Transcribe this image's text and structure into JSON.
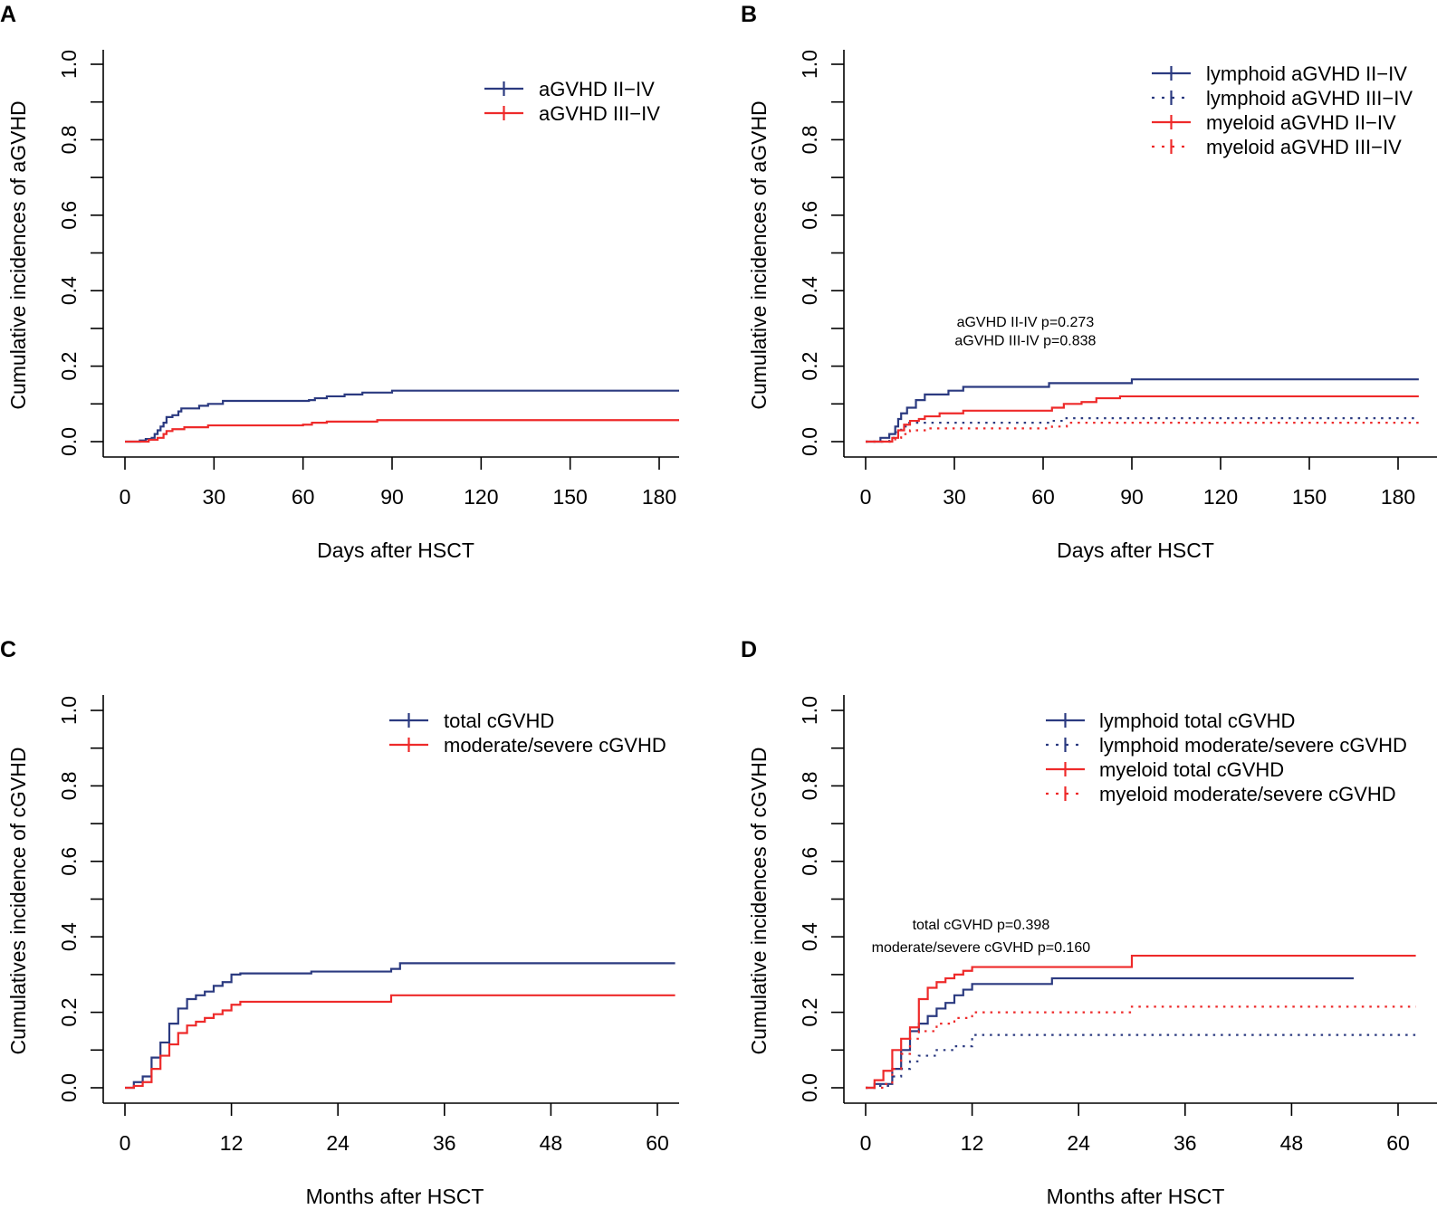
{
  "colors": {
    "blue": "#2b3a80",
    "red": "#ee2a2a"
  },
  "chart_data": [
    {
      "panel": "A",
      "type": "line",
      "step": true,
      "xlabel": "Days after HSCT",
      "ylabel": "Cumulative incidences of aGVHD",
      "xlim": [
        0,
        185
      ],
      "ylim": [
        0,
        1
      ],
      "xticks": [
        "0",
        "30",
        "60",
        "90",
        "120",
        "150",
        "180"
      ],
      "xtick_values": [
        0,
        30,
        60,
        90,
        120,
        150,
        180
      ],
      "yticks": [
        "0.0",
        "0.2",
        "0.4",
        "0.6",
        "0.8",
        "1.0"
      ],
      "ytick_values": [
        0,
        0.2,
        0.4,
        0.6,
        0.8,
        1.0
      ],
      "legend_position": "top-right",
      "annotations": [],
      "series": [
        {
          "name": "aGVHD II−IV",
          "color": "blue",
          "dash": "solid",
          "points": [
            [
              0,
              0
            ],
            [
              5,
              0.003
            ],
            [
              7,
              0.007
            ],
            [
              9,
              0.01
            ],
            [
              10,
              0.02
            ],
            [
              11,
              0.03
            ],
            [
              12,
              0.04
            ],
            [
              13,
              0.05
            ],
            [
              14,
              0.065
            ],
            [
              16,
              0.07
            ],
            [
              18,
              0.08
            ],
            [
              19,
              0.088
            ],
            [
              25,
              0.095
            ],
            [
              28,
              0.1
            ],
            [
              33,
              0.108
            ],
            [
              62,
              0.11
            ],
            [
              64,
              0.115
            ],
            [
              68,
              0.12
            ],
            [
              74,
              0.125
            ],
            [
              80,
              0.13
            ],
            [
              90,
              0.135
            ],
            [
              187,
              0.135
            ]
          ]
        },
        {
          "name": "aGVHD III−IV",
          "color": "red",
          "dash": "solid",
          "points": [
            [
              0,
              0
            ],
            [
              8,
              0.005
            ],
            [
              11,
              0.01
            ],
            [
              13,
              0.02
            ],
            [
              14,
              0.028
            ],
            [
              16,
              0.033
            ],
            [
              20,
              0.038
            ],
            [
              28,
              0.043
            ],
            [
              60,
              0.045
            ],
            [
              63,
              0.05
            ],
            [
              68,
              0.053
            ],
            [
              85,
              0.057
            ],
            [
              187,
              0.057
            ]
          ]
        }
      ]
    },
    {
      "panel": "B",
      "type": "line",
      "step": true,
      "xlabel": "Days after HSCT",
      "ylabel": "Cumulative incidences of aGVHD",
      "xlim": [
        0,
        185
      ],
      "ylim": [
        0,
        1
      ],
      "xticks": [
        "0",
        "30",
        "60",
        "90",
        "120",
        "150",
        "180"
      ],
      "xtick_values": [
        0,
        30,
        60,
        90,
        120,
        150,
        180
      ],
      "yticks": [
        "0.0",
        "0.2",
        "0.4",
        "0.6",
        "0.8",
        "1.0"
      ],
      "ytick_values": [
        0,
        0.2,
        0.4,
        0.6,
        0.8,
        1.0
      ],
      "legend_position": "top-right",
      "annotations": [
        {
          "text": "aGVHD II-IV p=0.273",
          "x": 54,
          "y": 0.305
        },
        {
          "text": "aGVHD III-IV p=0.838",
          "x": 54,
          "y": 0.255
        }
      ],
      "series": [
        {
          "name": "lymphoid aGVHD II−IV",
          "color": "blue",
          "dash": "solid",
          "points": [
            [
              0,
              0
            ],
            [
              5,
              0.01
            ],
            [
              8,
              0.02
            ],
            [
              10,
              0.04
            ],
            [
              11,
              0.06
            ],
            [
              12,
              0.075
            ],
            [
              14,
              0.09
            ],
            [
              17,
              0.11
            ],
            [
              20,
              0.125
            ],
            [
              28,
              0.135
            ],
            [
              33,
              0.145
            ],
            [
              62,
              0.155
            ],
            [
              90,
              0.165
            ],
            [
              187,
              0.165
            ]
          ]
        },
        {
          "name": "lymphoid aGVHD III−IV",
          "color": "blue",
          "dash": "dotted",
          "points": [
            [
              0,
              0
            ],
            [
              8,
              0.01
            ],
            [
              10,
              0.025
            ],
            [
              12,
              0.04
            ],
            [
              14,
              0.05
            ],
            [
              63,
              0.055
            ],
            [
              67,
              0.062
            ],
            [
              187,
              0.062
            ]
          ]
        },
        {
          "name": "myeloid aGVHD II−IV",
          "color": "red",
          "dash": "solid",
          "points": [
            [
              0,
              0
            ],
            [
              9,
              0.01
            ],
            [
              11,
              0.03
            ],
            [
              13,
              0.045
            ],
            [
              15,
              0.055
            ],
            [
              18,
              0.06
            ],
            [
              20,
              0.067
            ],
            [
              25,
              0.075
            ],
            [
              33,
              0.082
            ],
            [
              63,
              0.09
            ],
            [
              67,
              0.1
            ],
            [
              73,
              0.105
            ],
            [
              78,
              0.115
            ],
            [
              86,
              0.12
            ],
            [
              187,
              0.12
            ]
          ]
        },
        {
          "name": "myeloid aGVHD III−IV",
          "color": "red",
          "dash": "dotted",
          "points": [
            [
              0,
              0
            ],
            [
              10,
              0.01
            ],
            [
              12,
              0.02
            ],
            [
              15,
              0.03
            ],
            [
              20,
              0.035
            ],
            [
              63,
              0.04
            ],
            [
              68,
              0.05
            ],
            [
              187,
              0.05
            ]
          ]
        }
      ]
    },
    {
      "panel": "C",
      "type": "line",
      "step": true,
      "xlabel": "Months after HSCT",
      "ylabel": "Cumulatives incidence of cGVHD",
      "xlim": [
        0,
        62
      ],
      "ylim": [
        0,
        1
      ],
      "xticks": [
        "0",
        "12",
        "24",
        "36",
        "48",
        "60"
      ],
      "xtick_values": [
        0,
        12,
        24,
        36,
        48,
        60
      ],
      "yticks": [
        "0.0",
        "0.2",
        "0.4",
        "0.6",
        "0.8",
        "1.0"
      ],
      "ytick_values": [
        0,
        0.2,
        0.4,
        0.6,
        0.8,
        1.0
      ],
      "legend_position": "top-right",
      "annotations": [],
      "series": [
        {
          "name": "total cGVHD",
          "color": "blue",
          "dash": "solid",
          "points": [
            [
              0,
              0
            ],
            [
              1,
              0.015
            ],
            [
              2,
              0.03
            ],
            [
              3,
              0.08
            ],
            [
              4,
              0.12
            ],
            [
              5,
              0.17
            ],
            [
              6,
              0.21
            ],
            [
              7,
              0.235
            ],
            [
              8,
              0.245
            ],
            [
              9,
              0.255
            ],
            [
              10,
              0.27
            ],
            [
              11,
              0.28
            ],
            [
              12,
              0.3
            ],
            [
              13,
              0.303
            ],
            [
              21,
              0.308
            ],
            [
              30,
              0.315
            ],
            [
              31,
              0.33
            ],
            [
              62,
              0.33
            ]
          ]
        },
        {
          "name": "moderate/severe cGVHD",
          "color": "red",
          "dash": "solid",
          "points": [
            [
              0,
              0
            ],
            [
              1,
              0.005
            ],
            [
              2,
              0.015
            ],
            [
              3,
              0.05
            ],
            [
              4,
              0.085
            ],
            [
              5,
              0.115
            ],
            [
              6,
              0.145
            ],
            [
              7,
              0.165
            ],
            [
              8,
              0.175
            ],
            [
              9,
              0.185
            ],
            [
              10,
              0.195
            ],
            [
              11,
              0.205
            ],
            [
              12,
              0.22
            ],
            [
              13,
              0.228
            ],
            [
              30,
              0.245
            ],
            [
              62,
              0.245
            ]
          ]
        }
      ]
    },
    {
      "panel": "D",
      "type": "line",
      "step": true,
      "xlabel": "Months after HSCT",
      "ylabel": "Cumulative incidences of cGVHD",
      "xlim": [
        0,
        62
      ],
      "ylim": [
        0,
        1
      ],
      "xticks": [
        "0",
        "12",
        "24",
        "36",
        "48",
        "60"
      ],
      "xtick_values": [
        0,
        12,
        24,
        36,
        48,
        60
      ],
      "yticks": [
        "0.0",
        "0.2",
        "0.4",
        "0.6",
        "0.8",
        "1.0"
      ],
      "ytick_values": [
        0,
        0.2,
        0.4,
        0.6,
        0.8,
        1.0
      ],
      "legend_position": "top-right",
      "annotations": [
        {
          "text": "total cGVHD p=0.398",
          "x": 13,
          "y": 0.42
        },
        {
          "text": "moderate/severe cGVHD p=0.160",
          "x": 13,
          "y": 0.36
        }
      ],
      "series": [
        {
          "name": "lymphoid total cGVHD",
          "color": "blue",
          "dash": "solid",
          "points": [
            [
              0,
              0
            ],
            [
              1,
              0.01
            ],
            [
              3,
              0.05
            ],
            [
              4,
              0.1
            ],
            [
              5,
              0.15
            ],
            [
              6,
              0.17
            ],
            [
              7,
              0.19
            ],
            [
              8,
              0.21
            ],
            [
              9,
              0.225
            ],
            [
              10,
              0.245
            ],
            [
              11,
              0.26
            ],
            [
              12,
              0.275
            ],
            [
              21,
              0.29
            ],
            [
              55,
              0.29
            ]
          ]
        },
        {
          "name": "lymphoid moderate/severe cGVHD",
          "color": "blue",
          "dash": "dotted",
          "points": [
            [
              0,
              0
            ],
            [
              1,
              0.005
            ],
            [
              3,
              0.03
            ],
            [
              4,
              0.05
            ],
            [
              5,
              0.07
            ],
            [
              6,
              0.085
            ],
            [
              8,
              0.1
            ],
            [
              10,
              0.11
            ],
            [
              12,
              0.14
            ],
            [
              62,
              0.14
            ]
          ]
        },
        {
          "name": "myeloid total cGVHD",
          "color": "red",
          "dash": "solid",
          "points": [
            [
              0,
              0
            ],
            [
              1,
              0.02
            ],
            [
              2,
              0.045
            ],
            [
              3,
              0.1
            ],
            [
              4,
              0.13
            ],
            [
              5,
              0.16
            ],
            [
              6,
              0.235
            ],
            [
              7,
              0.265
            ],
            [
              8,
              0.28
            ],
            [
              9,
              0.29
            ],
            [
              10,
              0.3
            ],
            [
              11,
              0.31
            ],
            [
              12,
              0.32
            ],
            [
              30,
              0.35
            ],
            [
              62,
              0.35
            ]
          ]
        },
        {
          "name": "myeloid moderate/severe cGVHD",
          "color": "red",
          "dash": "dotted",
          "points": [
            [
              0,
              0
            ],
            [
              2,
              0.01
            ],
            [
              3,
              0.05
            ],
            [
              4,
              0.09
            ],
            [
              5,
              0.13
            ],
            [
              6,
              0.15
            ],
            [
              8,
              0.17
            ],
            [
              10,
              0.185
            ],
            [
              12,
              0.2
            ],
            [
              30,
              0.215
            ],
            [
              62,
              0.215
            ]
          ]
        }
      ]
    }
  ]
}
